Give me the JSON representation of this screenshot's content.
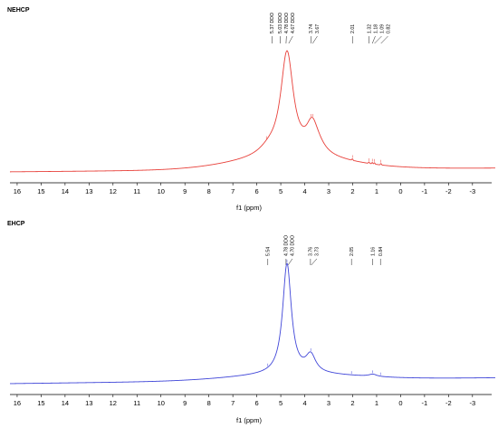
{
  "chart_data": [
    {
      "type": "line",
      "title": "NEHCP",
      "xlabel": "f1 (ppm)",
      "xlim": [
        16.3,
        -3.8
      ],
      "x_reversed": true,
      "xticks": [
        16,
        15,
        14,
        13,
        12,
        11,
        10,
        9,
        8,
        7,
        6,
        5,
        4,
        3,
        2,
        1,
        0,
        -1,
        -2,
        -3
      ],
      "color": "#e8403a",
      "peak_labels": [
        {
          "x": 5.37,
          "text": "5.37 DDO"
        },
        {
          "x": 5.03,
          "text": "5.03 DDO"
        },
        {
          "x": 4.78,
          "text": "4.78 DDO"
        },
        {
          "x": 4.67,
          "text": "4.67 DDO"
        },
        {
          "x": 3.74,
          "text": "3.74"
        },
        {
          "x": 3.67,
          "text": "3.67"
        },
        {
          "x": 2.01,
          "text": "2.01"
        },
        {
          "x": 1.32,
          "text": "1.32"
        },
        {
          "x": 1.18,
          "text": "1.18"
        },
        {
          "x": 1.09,
          "text": "1.09"
        },
        {
          "x": 0.82,
          "text": "0.82"
        }
      ],
      "baseline": {
        "left": 0.0,
        "right": 0.03
      },
      "broad_hump": {
        "center": 4.6,
        "width": 3.2,
        "height": 0.1
      },
      "peaks": [
        {
          "center": 4.74,
          "width": 0.32,
          "height": 0.85
        },
        {
          "center": 3.7,
          "width": 0.28,
          "height": 0.2
        },
        {
          "center": 3.5,
          "width": 0.4,
          "height": 0.08
        },
        {
          "center": 5.5,
          "width": 0.5,
          "height": 0.05
        }
      ],
      "minor_peaks": [
        2.01,
        1.32,
        1.18,
        1.09,
        0.82
      ],
      "marker_peaks": [
        5.6,
        3.74,
        3.67,
        2.01,
        1.32,
        1.18,
        1.09,
        0.82
      ]
    },
    {
      "type": "line",
      "title": "EHCP",
      "xlabel": "f1 (ppm)",
      "xlim": [
        16.3,
        -3.8
      ],
      "x_reversed": true,
      "xticks": [
        16,
        15,
        14,
        13,
        12,
        11,
        10,
        9,
        8,
        7,
        6,
        5,
        4,
        3,
        2,
        1,
        0,
        -1,
        -2,
        -3
      ],
      "color": "#3f45d8",
      "peak_labels": [
        {
          "x": 5.54,
          "text": "5.54"
        },
        {
          "x": 4.78,
          "text": "4.78 DDO"
        },
        {
          "x": 4.7,
          "text": "4.70 DDO"
        },
        {
          "x": 3.76,
          "text": "3.76"
        },
        {
          "x": 3.73,
          "text": "3.73"
        },
        {
          "x": 2.05,
          "text": "2.05"
        },
        {
          "x": 1.16,
          "text": "1.16"
        },
        {
          "x": 0.84,
          "text": "0.84"
        }
      ],
      "baseline": {
        "left": 0.0,
        "right": 0.05
      },
      "broad_hump": {
        "center": 4.5,
        "width": 3.5,
        "height": 0.05
      },
      "peaks": [
        {
          "center": 4.74,
          "width": 0.22,
          "height": 0.95
        },
        {
          "center": 3.75,
          "width": 0.25,
          "height": 0.15
        },
        {
          "center": 1.16,
          "width": 0.2,
          "height": 0.02
        }
      ],
      "minor_peaks": [],
      "marker_peaks": [
        5.54,
        4.74,
        3.75,
        2.05,
        1.16,
        0.84
      ]
    }
  ]
}
